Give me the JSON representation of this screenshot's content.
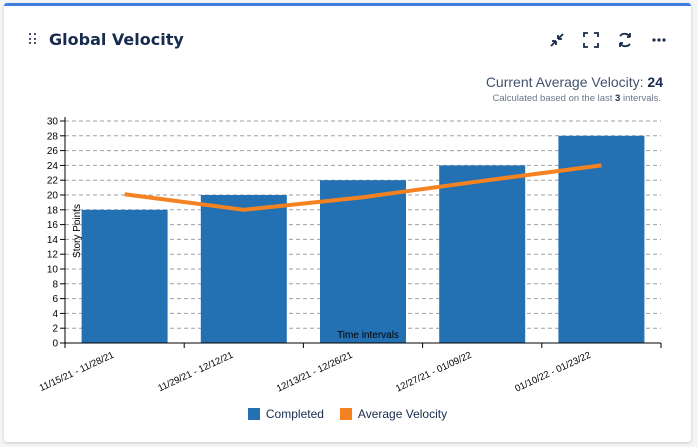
{
  "header": {
    "title": "Global Velocity",
    "icons": [
      "collapse-icon",
      "fullscreen-icon",
      "refresh-icon",
      "more-icon"
    ]
  },
  "summary": {
    "label": "Current Average Velocity:",
    "value": "24",
    "note_prefix": "Calculated based on the last",
    "note_count": "3",
    "note_suffix": "intervals."
  },
  "colors": {
    "completed": "#2371b3",
    "average": "#f58220",
    "accent": "#3d7fe0"
  },
  "chart_data": {
    "type": "bar",
    "categories": [
      "11/15/21 - 11/28/21",
      "11/29/21 - 12/12/21",
      "12/13/21 - 12/26/21",
      "12/27/21 - 01/09/22",
      "01/10/22 - 01/23/22"
    ],
    "series": [
      {
        "name": "Completed",
        "type": "bar",
        "values": [
          18,
          20,
          22,
          24,
          28
        ]
      },
      {
        "name": "Average Velocity",
        "type": "line",
        "values": [
          20.1,
          18.0,
          19.7,
          21.9,
          24.0
        ]
      }
    ],
    "xlabel": "Time intervals",
    "ylabel": "Story Points",
    "ylim": [
      0,
      30
    ],
    "yticks": [
      0,
      2,
      4,
      6,
      8,
      10,
      12,
      14,
      16,
      18,
      20,
      22,
      24,
      26,
      28,
      30
    ],
    "grid": true,
    "legend": "bottom"
  }
}
